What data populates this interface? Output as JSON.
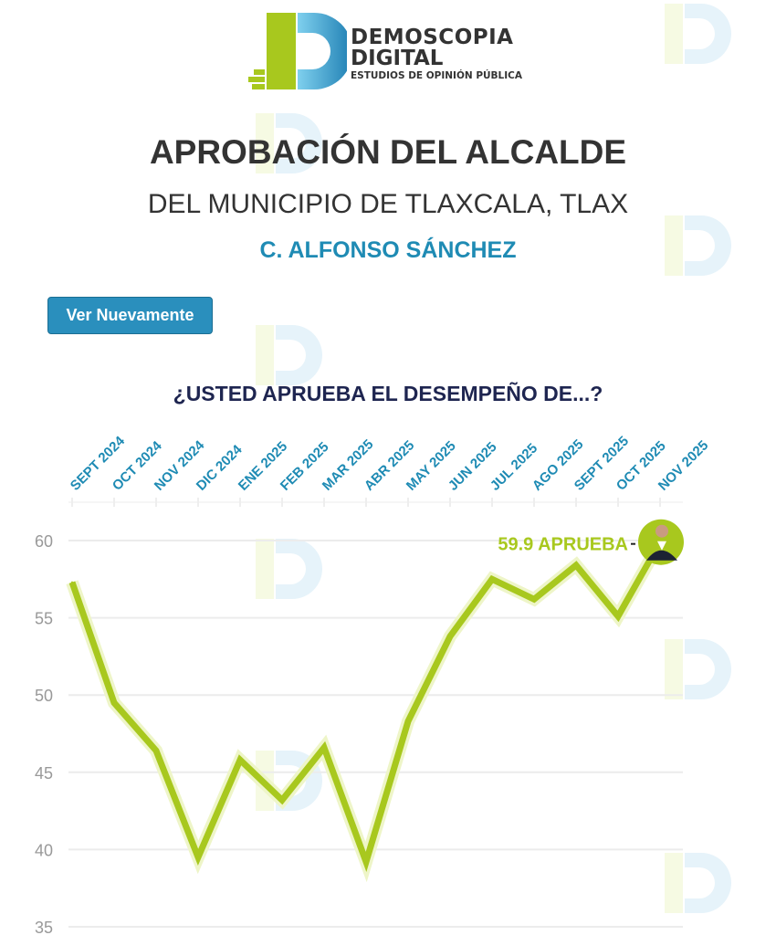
{
  "logo": {
    "line1": "DEMOSCOPIA",
    "line2": "DIGITAL",
    "line3": "ESTUDIOS DE OPINIÓN PÚBLICA"
  },
  "header": {
    "title": "APROBACIÓN DEL ALCALDE",
    "subtitle": "DEL MUNICIPIO DE TLAXCALA, TLAX",
    "name": "C. ALFONSO SÁNCHEZ"
  },
  "replay_button": "Ver Nuevamente",
  "question": "¿USTED APRUEBA EL DESEMPEÑO DE...?",
  "colors": {
    "line": "#a8c81e",
    "line_glow": "#eef5c8",
    "name": "#1f8bb4",
    "button": "#2a8fbd",
    "question": "#1e2550",
    "month_labels": "#1f8bb4"
  },
  "chart_data": {
    "type": "line",
    "categories": [
      "SEPT 2024",
      "OCT 2024",
      "NOV 2024",
      "DIC 2024",
      "ENE 2025",
      "FEB 2025",
      "MAR 2025",
      "ABR 2025",
      "MAY 2025",
      "JUN 2025",
      "JUL 2025",
      "AGO 2025",
      "SEPT 2025",
      "OCT 2025",
      "NOV 2025"
    ],
    "values": [
      57.3,
      49.5,
      46.4,
      39.5,
      45.8,
      43.2,
      46.6,
      39.2,
      48.3,
      53.8,
      57.5,
      56.2,
      58.4,
      55.1,
      59.9
    ],
    "yticks": [
      35,
      40,
      45,
      50,
      55,
      60
    ],
    "ylim": [
      35,
      62
    ],
    "grid": true,
    "end_label": "59.9 APRUEBA",
    "end_marker": "candidate-photo"
  }
}
